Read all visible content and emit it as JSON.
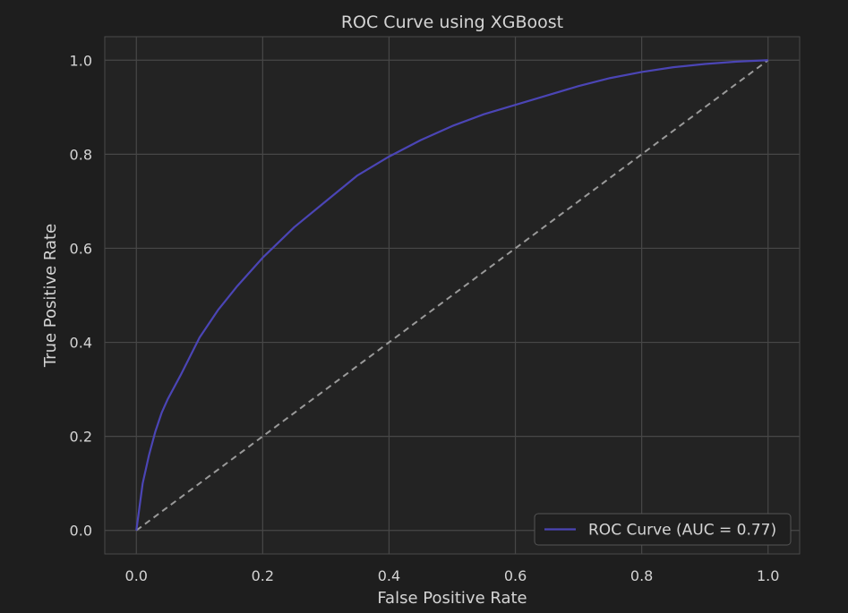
{
  "chart_data": {
    "type": "line",
    "title": "ROC Curve using XGBoost",
    "xlabel": "False Positive Rate",
    "ylabel": "True Positive Rate",
    "xlim": [
      -0.05,
      1.05
    ],
    "ylim": [
      -0.05,
      1.05
    ],
    "xticks": [
      0.0,
      0.2,
      0.4,
      0.6,
      0.8,
      1.0
    ],
    "yticks": [
      0.0,
      0.2,
      0.4,
      0.6,
      0.8,
      1.0
    ],
    "xtick_labels": [
      "0.0",
      "0.2",
      "0.4",
      "0.6",
      "0.8",
      "1.0"
    ],
    "ytick_labels": [
      "0.0",
      "0.2",
      "0.4",
      "0.6",
      "0.8",
      "1.0"
    ],
    "grid": true,
    "legend_position": "bottom-right",
    "series": [
      {
        "name": "ROC Curve (AUC = 0.77)",
        "color": "#4b45b5",
        "style": "solid",
        "x": [
          0.0,
          0.005,
          0.01,
          0.02,
          0.03,
          0.04,
          0.05,
          0.07,
          0.1,
          0.13,
          0.16,
          0.2,
          0.25,
          0.3,
          0.35,
          0.4,
          0.45,
          0.5,
          0.55,
          0.6,
          0.65,
          0.7,
          0.75,
          0.8,
          0.85,
          0.9,
          0.95,
          1.0
        ],
        "y": [
          0.0,
          0.05,
          0.1,
          0.16,
          0.21,
          0.25,
          0.28,
          0.33,
          0.41,
          0.47,
          0.52,
          0.58,
          0.645,
          0.7,
          0.755,
          0.795,
          0.83,
          0.86,
          0.885,
          0.905,
          0.925,
          0.945,
          0.962,
          0.975,
          0.985,
          0.992,
          0.997,
          1.0
        ]
      },
      {
        "name": "",
        "color": "#9a9a9a",
        "style": "dashed",
        "x": [
          0.0,
          1.0
        ],
        "y": [
          0.0,
          1.0
        ]
      }
    ],
    "colors": {
      "background": "#1e1e1e",
      "plot_area": "#232323",
      "grid": "#474747",
      "spine": "#4a4a4a",
      "text": "#d4d4d4",
      "legend_bg": "#1f1f1f",
      "legend_border": "#555555"
    }
  }
}
